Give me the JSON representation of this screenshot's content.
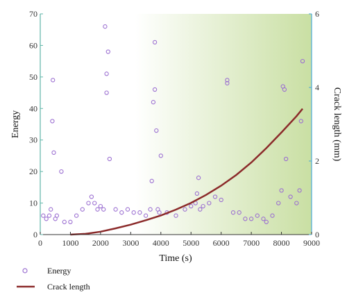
{
  "chart_data": {
    "type": "scatter",
    "title": "",
    "xlabel": "Time (s)",
    "ylabel_left": "Energy",
    "ylabel_right": "Crack length (mm)",
    "xlim": [
      0,
      9000
    ],
    "ylim_left": [
      0,
      70
    ],
    "ylim_right": [
      0,
      6
    ],
    "x_ticks": [
      "0",
      "1000",
      "2000",
      "3000",
      "4000",
      "5000",
      "6000",
      "7000",
      "8000",
      "9000"
    ],
    "y_left_ticks": [
      "0",
      "10",
      "20",
      "30",
      "40",
      "50",
      "60",
      "70"
    ],
    "y_right_ticks": [
      "0",
      "2",
      "4",
      "6"
    ],
    "legend": {
      "position": "bottom-left"
    },
    "colors": {
      "energy": "#9b6fd1",
      "crack": "#8b2a2a",
      "left_axis": "#5fb5a8",
      "right_axis": "#4aa8d8",
      "background_end": "#c9dfa3"
    },
    "series": [
      {
        "name": "Energy",
        "kind": "scatter",
        "axis": "left",
        "x": [
          100,
          200,
          300,
          350,
          400,
          420,
          450,
          500,
          550,
          700,
          800,
          1000,
          1200,
          1400,
          1600,
          1700,
          1800,
          1900,
          2000,
          2100,
          2150,
          2200,
          2200,
          2250,
          2300,
          2500,
          2700,
          2900,
          3100,
          3300,
          3500,
          3650,
          3700,
          3750,
          3800,
          3800,
          3850,
          3900,
          3950,
          4000,
          4200,
          4500,
          4800,
          5000,
          5150,
          5200,
          5250,
          5300,
          5400,
          5600,
          5800,
          6000,
          6200,
          6200,
          6400,
          6600,
          6800,
          7000,
          7200,
          7400,
          7500,
          7700,
          7900,
          8000,
          8050,
          8100,
          8150,
          8300,
          8500,
          8600,
          8650,
          8700
        ],
        "y": [
          6,
          5,
          6,
          8,
          36,
          49,
          26,
          5,
          6,
          20,
          4,
          4,
          6,
          8,
          10,
          12,
          10,
          8,
          9,
          8,
          66,
          45,
          51,
          58,
          24,
          8,
          7,
          8,
          7,
          7,
          6,
          8,
          17,
          42,
          46,
          61,
          33,
          8,
          7,
          25,
          7,
          6,
          8,
          9,
          10,
          13,
          18,
          8,
          9,
          10,
          12,
          11,
          49,
          48,
          7,
          7,
          5,
          5,
          6,
          5,
          4,
          6,
          10,
          14,
          47,
          46,
          24,
          12,
          10,
          14,
          36,
          55
        ]
      },
      {
        "name": "Crack length",
        "kind": "line",
        "axis": "right",
        "x": [
          1000,
          1500,
          2000,
          2500,
          3000,
          3500,
          4000,
          4500,
          5000,
          5500,
          6000,
          6500,
          7000,
          7500,
          8000,
          8500,
          8700
        ],
        "y": [
          0,
          0.02,
          0.08,
          0.17,
          0.27,
          0.39,
          0.52,
          0.68,
          0.86,
          1.08,
          1.33,
          1.62,
          1.96,
          2.35,
          2.78,
          3.22,
          3.42
        ]
      }
    ]
  }
}
